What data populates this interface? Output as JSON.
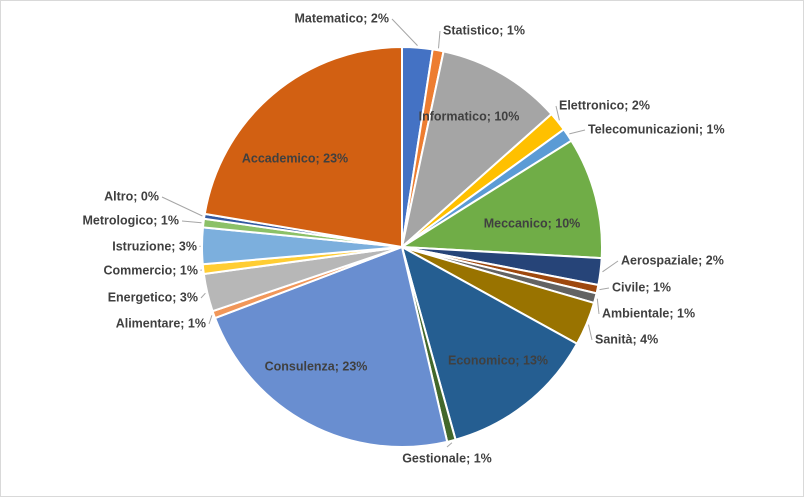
{
  "chart_data": {
    "type": "pie",
    "title": "",
    "start_angle_deg": 0,
    "direction": "clockwise",
    "categories": [
      "Matematico",
      "Statistico",
      "Informatico",
      "Elettronico",
      "Telecomunicazioni",
      "Meccanico",
      "Aerospaziale",
      "Civile",
      "Ambientale",
      "Sanità",
      "Economico",
      "Gestionale",
      "Consulenza",
      "Alimentare",
      "Energetico",
      "Commercio",
      "Istruzione",
      "Metrologico",
      "Altro",
      "Accademico"
    ],
    "values": [
      2.5,
      0.9,
      10.3,
      1.6,
      1.1,
      10.0,
      2.2,
      0.7,
      0.8,
      3.6,
      12.9,
      0.7,
      23.3,
      0.6,
      3.1,
      0.8,
      3.0,
      0.7,
      0.4,
      22.8
    ],
    "labels": [
      "Matematico; 2%",
      "Statistico; 1%",
      "Informatico; 10%",
      "Elettronico; 2%",
      "Telecomunicazioni; 1%",
      "Meccanico; 10%",
      "Aerospaziale; 2%",
      "Civile; 1%",
      "Ambientale; 1%",
      "Sanità; 4%",
      "Economico; 13%",
      "Gestionale; 1%",
      "Consulenza; 23%",
      "Alimentare; 1%",
      "Energetico; 3%",
      "Commercio; 1%",
      "Istruzione; 3%",
      "Metrologico; 1%",
      "Altro; 0%",
      "Accademico; 23%"
    ],
    "colors": [
      "#4472C4",
      "#ED7D31",
      "#A5A5A5",
      "#FFC000",
      "#5B9BD5",
      "#70AD47",
      "#264478",
      "#9E480E",
      "#636363",
      "#997300",
      "#255E91",
      "#43682B",
      "#698ED0",
      "#F1975A",
      "#B7B7B7",
      "#FFCD33",
      "#7CAFDD",
      "#8CC168",
      "#335AA1",
      "#D26012"
    ],
    "legend": "none"
  }
}
